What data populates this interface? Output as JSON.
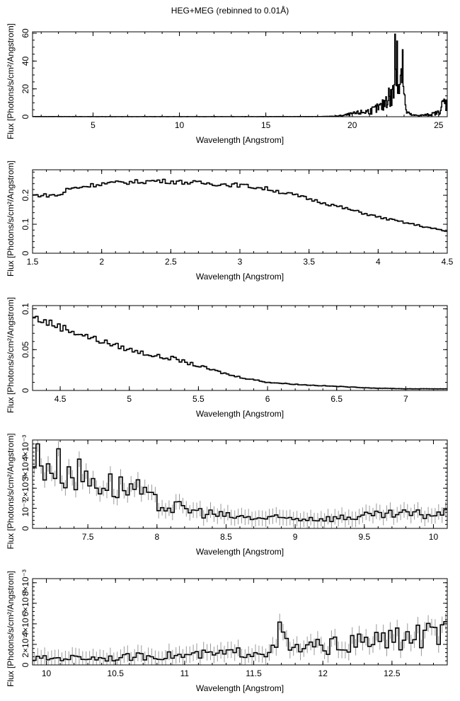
{
  "title": "HEG+MEG (rebinned to 0.01Å)",
  "chart_data": [
    {
      "type": "line",
      "title": "HEG+MEG (rebinned to 0.01Å)",
      "xlabel": "Wavelength [Angstrom]",
      "ylabel": "Flux [Photons/s/cm²/Angstrom]",
      "xlim": [
        1.5,
        25.5
      ],
      "ylim": [
        0,
        61
      ],
      "xticks": [
        "5",
        "10",
        "15",
        "20",
        "25"
      ],
      "xtick_values": [
        5,
        10,
        15,
        20,
        25
      ],
      "yticks": [
        "0",
        "20",
        "40",
        "60"
      ],
      "ytick_values": [
        0,
        20,
        40,
        60
      ],
      "x": [
        1.5,
        5,
        10,
        15,
        18,
        19,
        19.5,
        20,
        20.5,
        21,
        21.5,
        21.8,
        22.0,
        22.1,
        22.2,
        22.4,
        22.5,
        22.55,
        22.6,
        22.7,
        22.8,
        22.9,
        22.95,
        23.0,
        23.1,
        23.3,
        23.5,
        24,
        24.5,
        25,
        25.3,
        25.5
      ],
      "y": [
        0.1,
        0.05,
        0.05,
        0.05,
        0.1,
        0.3,
        1,
        2,
        3,
        4,
        6,
        8,
        14,
        16,
        12,
        18,
        48,
        20,
        53,
        24,
        28,
        60,
        27,
        20,
        4,
        2,
        1,
        1,
        1.5,
        3,
        10,
        9
      ]
    },
    {
      "type": "line",
      "xlabel": "Wavelength [Angstrom]",
      "ylabel": "Flux [Photons/s/cm²/Angstrom]",
      "xlim": [
        1.5,
        4.5
      ],
      "ylim": [
        0,
        0.288
      ],
      "xticks": [
        "1.5",
        "2",
        "2.5",
        "3",
        "3.5",
        "4",
        "4.5"
      ],
      "xtick_values": [
        1.5,
        2,
        2.5,
        3,
        3.5,
        4,
        4.5
      ],
      "yticks": [
        "0",
        "0.1",
        "0.2"
      ],
      "ytick_values": [
        0,
        0.1,
        0.2
      ],
      "x": [
        1.5,
        1.6,
        1.7,
        1.75,
        1.8,
        2.0,
        2.2,
        2.4,
        2.6,
        2.8,
        3.0,
        3.2,
        3.4,
        3.6,
        3.8,
        4.0,
        4.2,
        4.4,
        4.5
      ],
      "y": [
        0.2,
        0.2,
        0.2,
        0.22,
        0.225,
        0.24,
        0.245,
        0.25,
        0.245,
        0.24,
        0.235,
        0.222,
        0.2,
        0.175,
        0.15,
        0.125,
        0.105,
        0.085,
        0.075
      ]
    },
    {
      "type": "line",
      "xlabel": "Wavelength [Angstrom]",
      "ylabel": "Flux [Photons/s/cm²/Angstrom]",
      "xlim": [
        4.3,
        7.3
      ],
      "ylim": [
        0,
        0.104
      ],
      "xticks": [
        "4.5",
        "5",
        "5.5",
        "6",
        "6.5",
        "7"
      ],
      "xtick_values": [
        4.5,
        5,
        5.5,
        6,
        6.5,
        7
      ],
      "yticks": [
        "0",
        "0.05",
        "0.1"
      ],
      "ytick_values": [
        0,
        0.05,
        0.1
      ],
      "x": [
        4.3,
        4.5,
        4.75,
        5.0,
        5.25,
        5.3,
        5.5,
        5.75,
        6.0,
        6.25,
        6.5,
        6.75,
        7.0,
        7.3
      ],
      "y": [
        0.09,
        0.078,
        0.063,
        0.05,
        0.04,
        0.04,
        0.03,
        0.018,
        0.01,
        0.007,
        0.005,
        0.003,
        0.002,
        0.002
      ]
    },
    {
      "type": "line",
      "xlabel": "Wavelength [Angstrom]",
      "ylabel": "Flux [Photons/s/cm²/Angstrom]",
      "xlim": [
        7.1,
        10.1
      ],
      "ylim": [
        0,
        0.0044
      ],
      "xticks": [
        "7.5",
        "8",
        "8.5",
        "9",
        "9.5",
        "10"
      ],
      "xtick_values": [
        7.5,
        8,
        8.5,
        9,
        9.5,
        10
      ],
      "yticks": [
        "0",
        "10⁻³",
        "2×10⁻³",
        "3×10⁻³",
        "4×10⁻³"
      ],
      "ytick_values": [
        0,
        0.001,
        0.002,
        0.003,
        0.004
      ],
      "x": [
        7.1,
        7.2,
        7.3,
        7.5,
        7.75,
        7.8,
        8.0,
        8.25,
        8.5,
        8.75,
        9.0,
        9.25,
        9.5,
        9.75,
        10.0,
        10.1
      ],
      "y": [
        0.0035,
        0.0033,
        0.003,
        0.0025,
        0.002,
        0.0021,
        0.0012,
        0.0009,
        0.0006,
        0.0005,
        0.0005,
        0.0005,
        0.0006,
        0.0007,
        0.0007,
        0.0007
      ]
    },
    {
      "type": "line",
      "xlabel": "Wavelength [Angstrom]",
      "ylabel": "Flux [Photons/s/cm²/Angstrom]",
      "xlim": [
        9.9,
        12.9
      ],
      "ylim": [
        0,
        0.0084
      ],
      "xticks": [
        "10",
        "10.5",
        "11",
        "11.5",
        "12",
        "12.5"
      ],
      "xtick_values": [
        10,
        10.5,
        11,
        11.5,
        12,
        12.5
      ],
      "yticks": [
        "0",
        "2×10⁻³",
        "4×10⁻³",
        "6×10⁻³",
        "8×10⁻³"
      ],
      "ytick_values": [
        0,
        0.002,
        0.004,
        0.006,
        0.008
      ],
      "x": [
        9.9,
        10.2,
        10.5,
        10.8,
        11.0,
        11.3,
        11.5,
        11.65,
        11.7,
        11.75,
        12.0,
        12.2,
        12.4,
        12.6,
        12.8,
        12.9
      ],
      "y": [
        0.0006,
        0.0007,
        0.0007,
        0.0009,
        0.0009,
        0.0011,
        0.0013,
        0.0014,
        0.0035,
        0.0015,
        0.0018,
        0.002,
        0.0024,
        0.0026,
        0.003,
        0.003
      ]
    }
  ]
}
